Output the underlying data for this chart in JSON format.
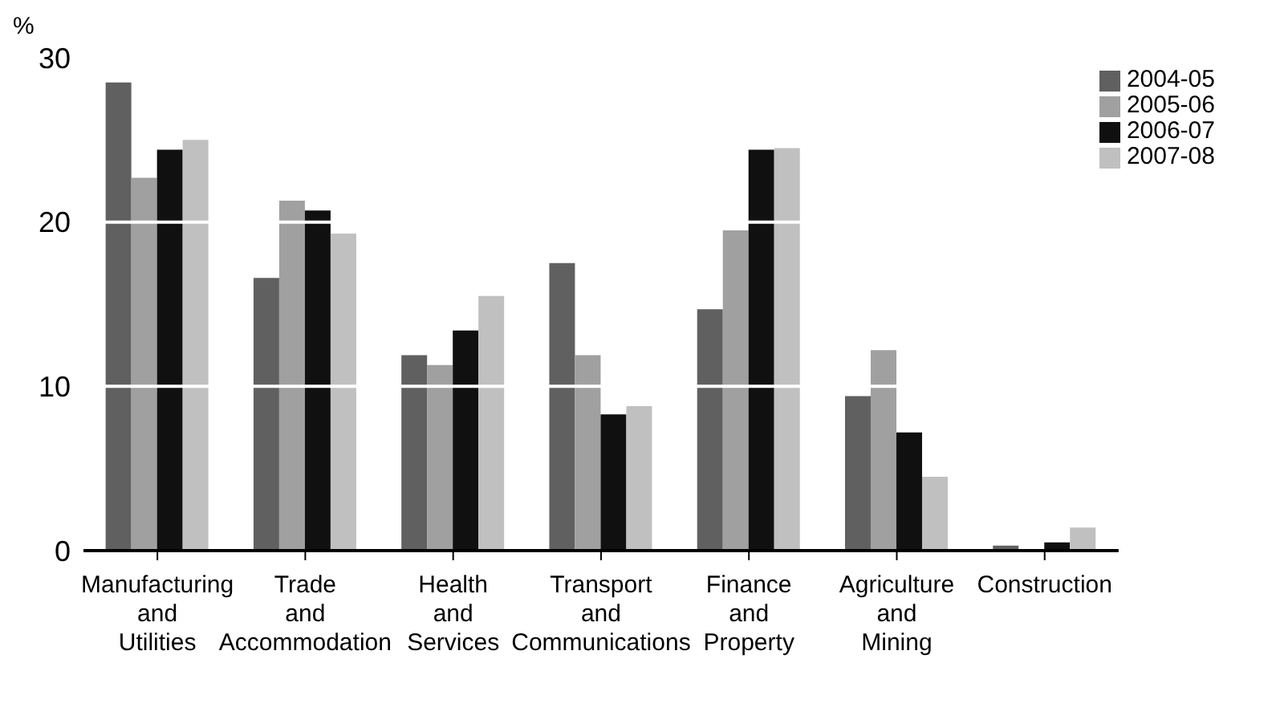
{
  "chart_data": {
    "type": "bar",
    "ylabel": "%",
    "categories": [
      "Manufacturing and Utilities",
      "Trade and Accommodation",
      "Health and Services",
      "Transport and Communications",
      "Finance and Property",
      "Agriculture and Mining",
      "Construction"
    ],
    "series": [
      {
        "name": "2004-05",
        "color": "#606060",
        "values": [
          28.5,
          16.6,
          11.9,
          17.5,
          14.7,
          9.4,
          0.3
        ]
      },
      {
        "name": "2005-06",
        "color": "#a0a0a0",
        "values": [
          22.7,
          21.3,
          11.3,
          11.9,
          19.5,
          12.2,
          0
        ]
      },
      {
        "name": "2006-07",
        "color": "#101010",
        "values": [
          24.4,
          20.7,
          13.4,
          8.3,
          24.4,
          7.2,
          0.5
        ]
      },
      {
        "name": "2007-08",
        "color": "#c0c0c0",
        "values": [
          25.0,
          19.3,
          15.5,
          8.8,
          24.5,
          4.5,
          1.4
        ]
      }
    ],
    "ylim": [
      0,
      30
    ],
    "yticks": [
      0,
      10,
      20,
      30
    ],
    "grid": "y",
    "legend": "top right"
  }
}
